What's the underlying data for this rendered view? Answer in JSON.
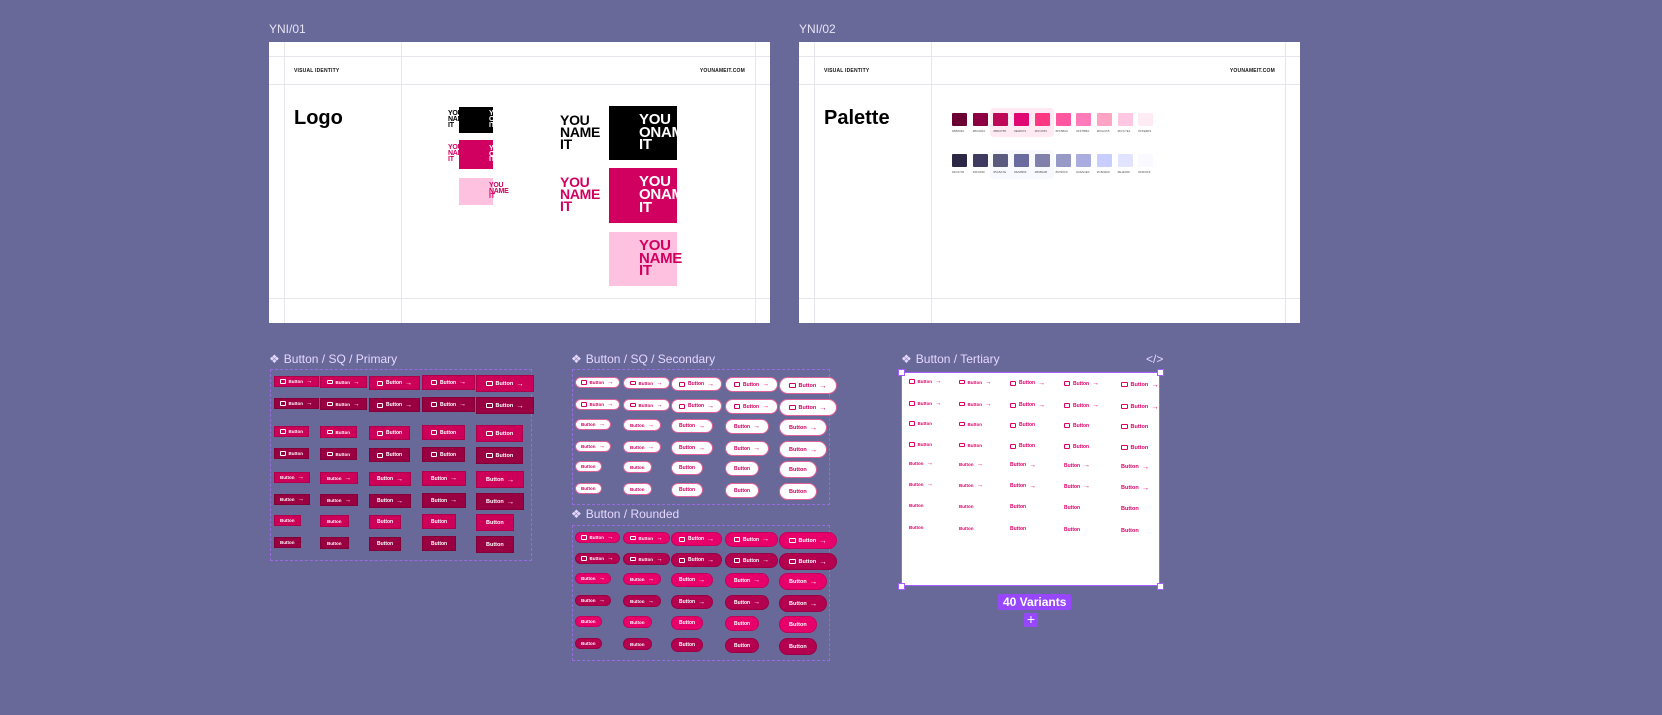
{
  "canvas": {
    "background": "#686899"
  },
  "frames": [
    {
      "label": "YNI/01",
      "header_left": "VISUAL IDENTITY",
      "header_right": "YOUNAMEIT.COM",
      "title": "Logo"
    },
    {
      "label": "YNI/02",
      "header_left": "VISUAL IDENTITY",
      "header_right": "YOUNAMEIT.COM",
      "title": "Palette"
    }
  ],
  "logo": {
    "line1": "YOU",
    "line2": "NAME",
    "line2_alt": "ONAMEO",
    "line3": "IT",
    "colors": {
      "black": "#000000",
      "magenta": "#D10060",
      "light_pink": "#FFC1E0"
    }
  },
  "palette": {
    "magenta": [
      {
        "hex": "#6B0032"
      },
      {
        "hex": "#8C0043"
      },
      {
        "hex": "#BD0758"
      },
      {
        "hex": "#E00673"
      },
      {
        "hex": "#FF3783"
      },
      {
        "hex": "#FF58A0"
      },
      {
        "hex": "#FF7BBA"
      },
      {
        "hex": "#FFA3C5"
      },
      {
        "hex": "#FFC7E1"
      },
      {
        "hex": "#FFEBF3"
      }
    ],
    "neutral": [
      {
        "hex": "#2C2745"
      },
      {
        "hex": "#3F3A5F"
      },
      {
        "hex": "#5A5A7E"
      },
      {
        "hex": "#6A6B9F"
      },
      {
        "hex": "#8080AB"
      },
      {
        "hex": "#9799C6"
      },
      {
        "hex": "#A9ADE0"
      },
      {
        "hex": "#C8CEFF"
      },
      {
        "hex": "#E1E3FF"
      },
      {
        "hex": "#F9F9FF"
      }
    ]
  },
  "components": {
    "primary": {
      "title": "Button / SQ / Primary",
      "colors": [
        "#CC0058",
        "#990041"
      ]
    },
    "secondary": {
      "title": "Button / SQ / Secondary"
    },
    "rounded": {
      "title": "Button / Rounded",
      "colors": [
        "#E8006A",
        "#B3004F"
      ]
    },
    "tertiary": {
      "title": "Button / Tertiary",
      "code_icon": "</>"
    },
    "button_label": "Button",
    "component_icon": "❖",
    "variants_badge": "40 Variants",
    "add_icon": "+"
  }
}
